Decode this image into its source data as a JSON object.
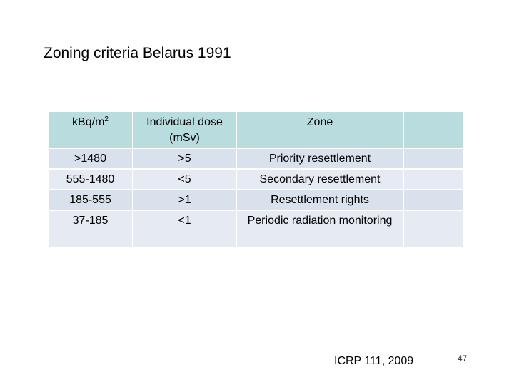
{
  "slide": {
    "title": "Zoning criteria Belarus 1991",
    "citation": "ICRP 111, 2009",
    "page_number": "47"
  },
  "colors": {
    "header_bg": "#b9dcdf",
    "row_odd_bg": "#d8e1ec",
    "row_even_bg": "#e6ebf3"
  },
  "table": {
    "headers": {
      "col1_base": "kBq/m",
      "col1_sup": "2",
      "col2": "Individual dose (mSv)",
      "col3": "Zone",
      "col4": ""
    },
    "rows": [
      {
        "range": ">1480",
        "dose": ">5",
        "zone": "Priority resettlement"
      },
      {
        "range": "555-1480",
        "dose": "<5",
        "zone": "Secondary resettlement"
      },
      {
        "range": "185-555",
        "dose": ">1",
        "zone": "Resettlement rights"
      },
      {
        "range": "37-185",
        "dose": "<1",
        "zone": "Periodic radiation monitoring"
      }
    ]
  }
}
